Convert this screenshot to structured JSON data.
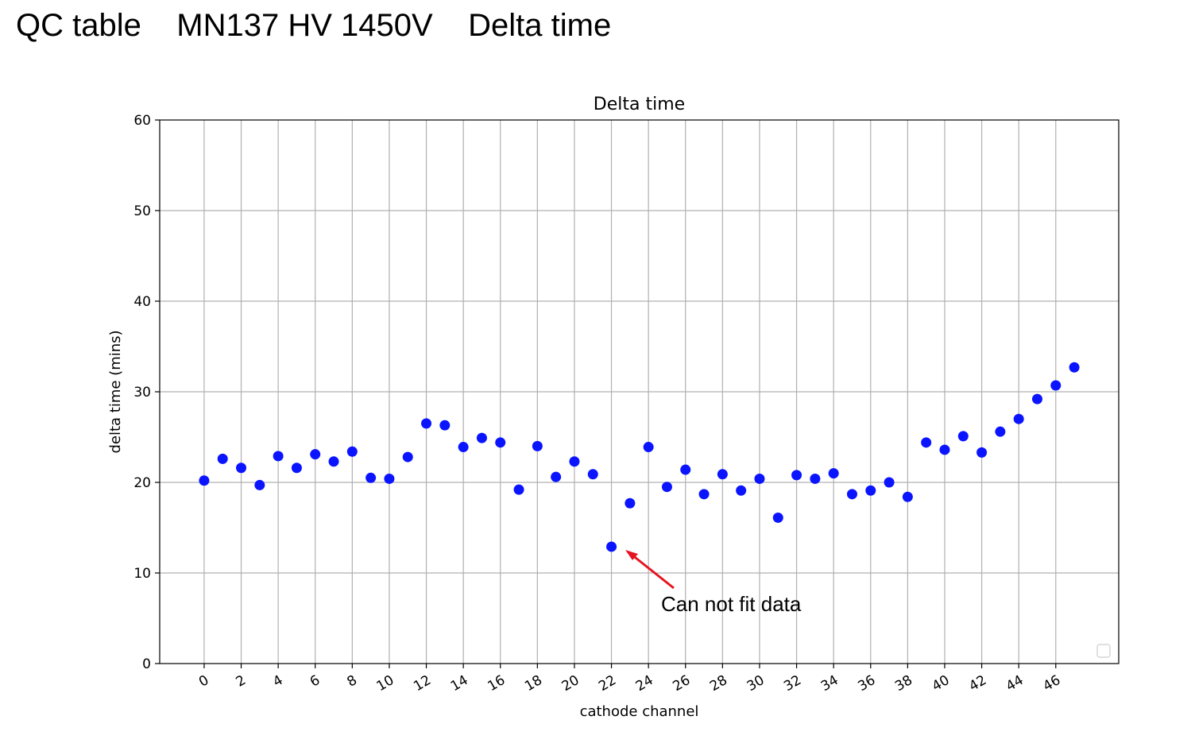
{
  "slide": {
    "title": "QC table    MN137 HV 1450V    Delta time"
  },
  "chart_data": {
    "type": "scatter",
    "title": "Delta time",
    "xlabel": "cathode channel",
    "ylabel": "delta time (mins)",
    "xlim": [
      -2.4,
      49.4
    ],
    "ylim": [
      0,
      60
    ],
    "xticks": [
      0,
      2,
      4,
      6,
      8,
      10,
      12,
      14,
      16,
      18,
      20,
      22,
      24,
      26,
      28,
      30,
      32,
      34,
      36,
      38,
      40,
      42,
      44,
      46
    ],
    "yticks": [
      0,
      10,
      20,
      30,
      40,
      50,
      60
    ],
    "grid": true,
    "legend": "bottom-right (empty)",
    "marker_color": "#0a14ff",
    "annotation_color": "#e5141e",
    "series": [
      {
        "x": [
          0,
          1,
          2,
          3,
          4,
          5,
          6,
          7,
          8,
          9,
          10,
          11,
          12,
          13,
          14,
          15,
          16,
          17,
          18,
          19,
          20,
          21,
          22,
          23,
          24,
          25,
          26,
          27,
          28,
          29,
          30,
          31,
          32,
          33,
          34,
          35,
          36,
          37,
          38,
          39,
          40,
          41,
          42,
          43,
          44,
          45,
          46,
          47
        ],
        "y": [
          20.2,
          22.6,
          21.6,
          19.7,
          22.9,
          21.6,
          23.1,
          22.3,
          23.4,
          20.5,
          20.4,
          22.8,
          26.5,
          26.3,
          23.9,
          24.9,
          24.4,
          19.2,
          24.0,
          20.6,
          22.3,
          20.9,
          12.9,
          17.7,
          23.9,
          19.5,
          21.4,
          18.7,
          20.9,
          19.1,
          20.4,
          16.1,
          20.8,
          20.4,
          21.0,
          18.7,
          19.1,
          20.0,
          18.4,
          24.4,
          23.6,
          25.1,
          23.3,
          25.6,
          27.0,
          29.2,
          30.7,
          32.7
        ]
      }
    ],
    "annotations": [
      {
        "text": "Can not fit data",
        "target": [
          22,
          12.9
        ]
      }
    ]
  }
}
